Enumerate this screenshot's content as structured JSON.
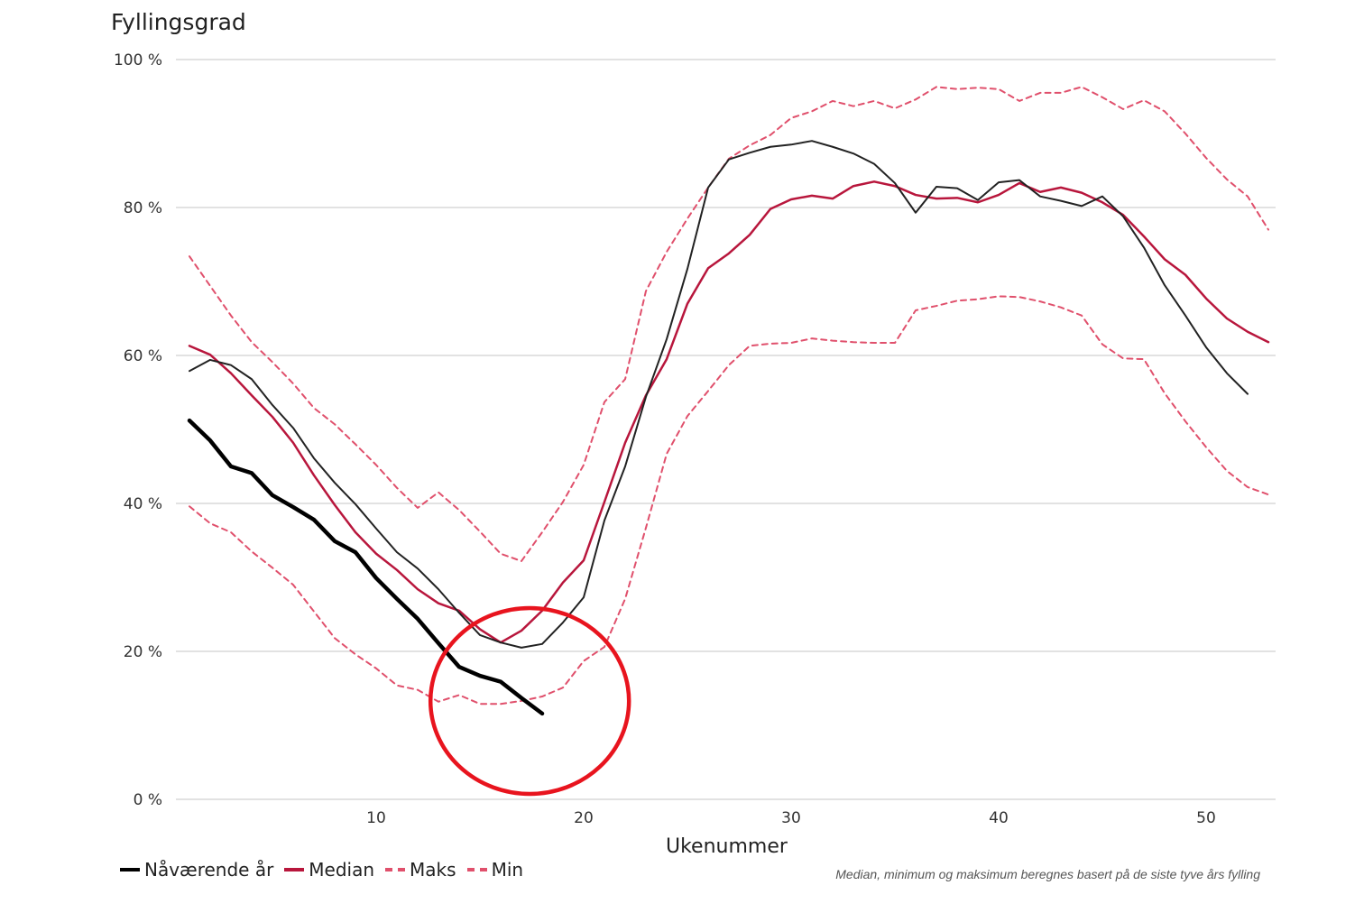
{
  "chart_data": {
    "type": "line",
    "title": "Fyllingsgrad",
    "xlabel": "Ukenummer",
    "ylabel": "",
    "xlim": [
      1,
      53
    ],
    "ylim": [
      0,
      100
    ],
    "x_ticks": [
      10,
      20,
      30,
      40,
      50
    ],
    "y_ticks": [
      0,
      20,
      40,
      60,
      80,
      100
    ],
    "y_tick_labels": [
      "0 %",
      "20 %",
      "40 %",
      "60 %",
      "80 %",
      "100 %"
    ],
    "grid": "horizontal",
    "legend_position": "bottom-left",
    "footnote": "Median, minimum og maksimum beregnes basert på de siste tyve års fylling",
    "series": [
      {
        "id": "min",
        "name": "Min",
        "color": "#e0506c",
        "style": "dashed",
        "width": 2,
        "start_week": 1,
        "values": [
          39.6,
          37.3,
          36.1,
          33.5,
          31.3,
          29,
          25.4,
          21.8,
          19.6,
          17.7,
          15.4,
          14.8,
          13.2,
          14.1,
          12.9,
          12.9,
          13.3,
          13.9,
          15.1,
          18.7,
          20.6,
          27.1,
          36.7,
          46.7,
          51.8,
          55.2,
          58.7,
          61.3,
          61.6,
          61.7,
          62.3,
          62,
          61.8,
          61.7,
          61.7,
          66.1,
          66.7,
          67.4,
          67.6,
          68,
          67.9,
          67.3,
          66.5,
          65.4,
          61.5,
          59.6,
          59.5,
          54.9,
          51.1,
          47.6,
          44.4,
          42.2,
          41.2
        ]
      },
      {
        "id": "maks",
        "name": "Maks",
        "color": "#e0506c",
        "style": "dashed",
        "width": 2,
        "start_week": 1,
        "values": [
          73.4,
          69.4,
          65.4,
          61.8,
          59.1,
          56.2,
          52.9,
          50.7,
          48,
          45.2,
          42.1,
          39.4,
          41.5,
          39.1,
          36.2,
          33.2,
          32.2,
          36.1,
          40.2,
          45.2,
          53.7,
          56.8,
          68.7,
          74,
          78.5,
          82.7,
          86.6,
          88.4,
          89.8,
          92.1,
          93,
          94.4,
          93.7,
          94.4,
          93.4,
          94.6,
          96.3,
          96,
          96.2,
          96,
          94.4,
          95.5,
          95.5,
          96.3,
          94.9,
          93.3,
          94.5,
          93,
          90,
          86.7,
          83.8,
          81.5,
          77
        ]
      },
      {
        "id": "median",
        "name": "Median",
        "color": "#b8163c",
        "style": "solid",
        "width": 2.5,
        "start_week": 1,
        "values": [
          61.3,
          60.1,
          57.6,
          54.6,
          51.7,
          48.2,
          43.8,
          39.8,
          36.1,
          33.2,
          31,
          28.4,
          26.5,
          25.5,
          23,
          21.2,
          22.8,
          25.5,
          29.3,
          32.3,
          40.2,
          48.2,
          54.6,
          59.5,
          67,
          71.8,
          73.8,
          76.3,
          79.8,
          81.1,
          81.6,
          81.2,
          82.9,
          83.5,
          82.9,
          81.7,
          81.2,
          81.3,
          80.7,
          81.7,
          83.3,
          82.1,
          82.7,
          82,
          80.7,
          79,
          76.1,
          73,
          70.9,
          67.7,
          65,
          63.2,
          61.8
        ]
      },
      {
        "id": "previous",
        "name": "",
        "color": "#222222",
        "style": "solid",
        "width": 2,
        "start_week": 1,
        "values": [
          57.9,
          59.4,
          58.7,
          56.8,
          53.3,
          50.2,
          46.1,
          42.8,
          39.9,
          36.6,
          33.4,
          31.2,
          28.4,
          25.2,
          22.2,
          21.2,
          20.5,
          21,
          23.9,
          27.3,
          37.7,
          45,
          54.4,
          62.2,
          71.7,
          82.7,
          86.5,
          87.4,
          88.2,
          88.5,
          89,
          88.2,
          87.3,
          85.9,
          83.3,
          79.3,
          82.8,
          82.6,
          81,
          83.4,
          83.7,
          81.5,
          80.9,
          80.2,
          81.5,
          78.8,
          74.6,
          69.5,
          65.4,
          61.1,
          57.6,
          54.8
        ]
      },
      {
        "id": "current",
        "name": "Nåværende år",
        "color": "#000000",
        "style": "solid",
        "width": 4.5,
        "start_week": 1,
        "values": [
          51.2,
          48.5,
          45,
          44.1,
          41.1,
          39.5,
          37.8,
          34.9,
          33.4,
          29.9,
          27.1,
          24.4,
          21.1,
          17.9,
          16.7,
          15.9,
          13.7,
          11.6
        ]
      }
    ],
    "legend": [
      {
        "name": "Nåværende år",
        "color": "#000000",
        "style": "solid"
      },
      {
        "name": "Median",
        "color": "#b8163c",
        "style": "solid"
      },
      {
        "name": "Maks",
        "color": "#e0506c",
        "style": "dashed"
      },
      {
        "name": "Min",
        "color": "#e0506c",
        "style": "dashed"
      }
    ],
    "annotation": {
      "type": "circle",
      "color": "#e8141e",
      "center_week": 17.4,
      "center_value": 13.3
    }
  }
}
